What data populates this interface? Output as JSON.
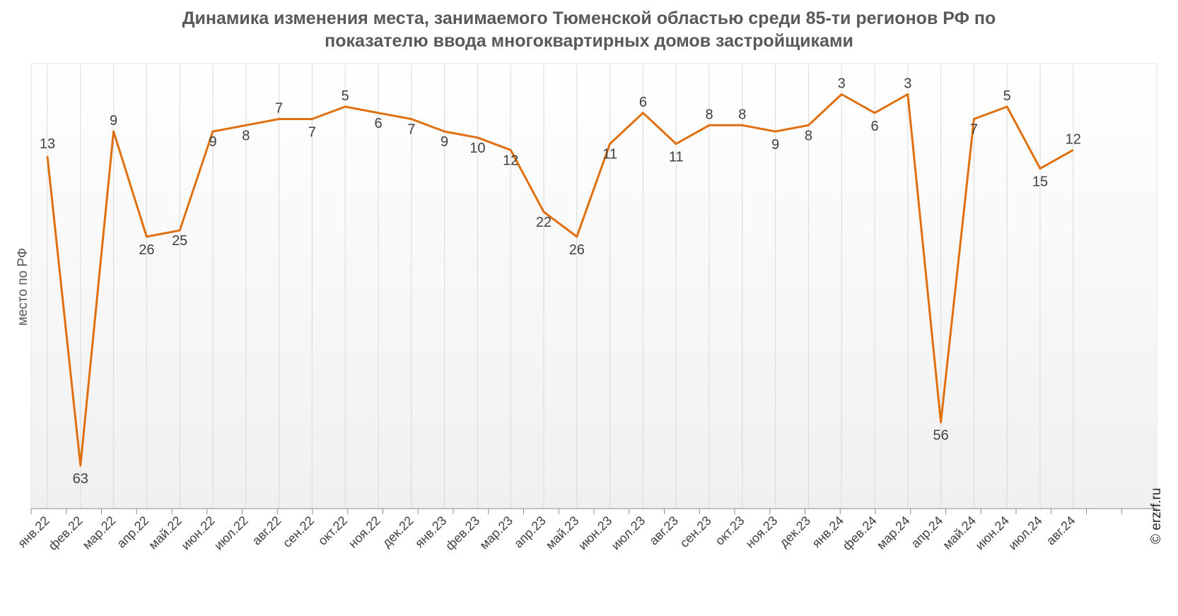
{
  "title": {
    "line1": "Динамика изменения места, занимаемого Тюменской областью среди 85-ти регионов РФ по",
    "line2": "показателю ввода многоквартирных домов застройщиками"
  },
  "watermark": "© erzrf.ru",
  "colors": {
    "line": "#e0700f",
    "grid": "#d9d9d9",
    "text": "#404040"
  },
  "chart_data": {
    "type": "line",
    "ylabel": "место по РФ",
    "y_reversed": true,
    "ylim": [
      1,
      63
    ],
    "grid": "vertical",
    "categories": [
      "янв.22",
      "фев.22",
      "мар.22",
      "апр.22",
      "май.22",
      "июн.22",
      "июл.22",
      "авг.22",
      "сен.22",
      "окт.22",
      "ноя.22",
      "дек.22",
      "янв.23",
      "фев.23",
      "мар.23",
      "апр.23",
      "май.23",
      "июн.23",
      "июл.23",
      "авг.23",
      "сен.23",
      "окт.23",
      "ноя.23",
      "дек.23",
      "янв.24",
      "фев.24",
      "мар.24",
      "апр.24",
      "май.24",
      "июн.24",
      "июл.24",
      "авг.24"
    ],
    "series": [
      {
        "values": [
          13,
          63,
          9,
          26,
          25,
          9,
          8,
          7,
          7,
          5,
          6,
          7,
          9,
          10,
          12,
          22,
          26,
          11,
          6,
          11,
          8,
          8,
          9,
          8,
          3,
          6,
          3,
          56,
          7,
          5,
          15,
          12
        ]
      }
    ]
  }
}
